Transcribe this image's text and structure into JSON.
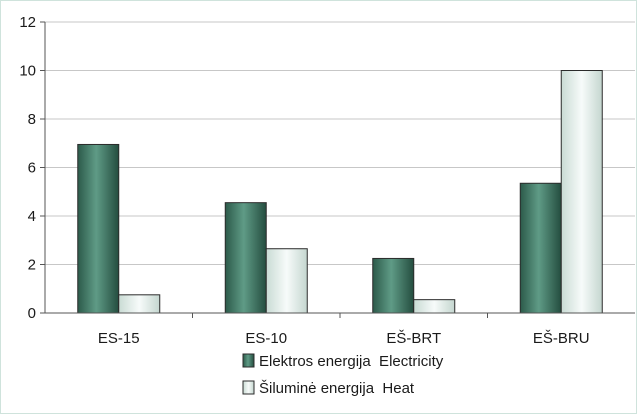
{
  "chart_data": {
    "type": "bar",
    "categories": [
      "ES-15",
      "ES-10",
      "EŠ-BRT",
      "EŠ-BRU"
    ],
    "series": [
      {
        "name": "Elektros energija  Electricity",
        "values": [
          6.95,
          4.55,
          2.25,
          5.35
        ],
        "color": "#3f7a66"
      },
      {
        "name": "Šiluminė energija  Heat",
        "values": [
          0.75,
          2.65,
          0.55,
          10.0
        ],
        "color": "#e4eeea"
      }
    ],
    "ylim": [
      0,
      12
    ],
    "yticks": [
      "0",
      "2",
      "4",
      "6",
      "8",
      "10",
      "12"
    ],
    "grid": true,
    "legend_position": "bottom-center"
  }
}
